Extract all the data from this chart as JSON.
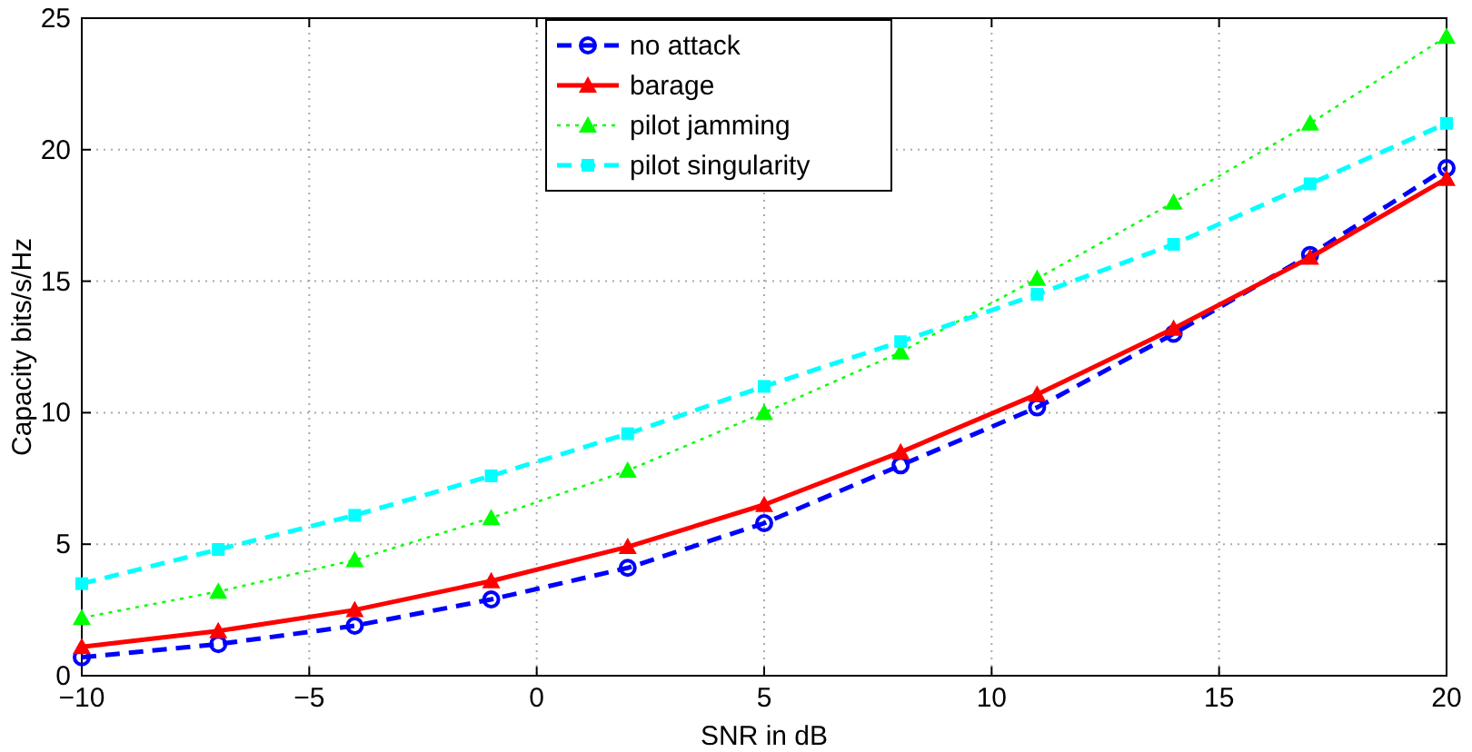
{
  "chart_data": {
    "type": "line",
    "xlabel": "SNR in dB",
    "ylabel": "Capacity bits/s/Hz",
    "x": [
      -10,
      -7,
      -4,
      -1,
      2,
      5,
      8,
      11,
      14,
      17,
      20
    ],
    "series": [
      {
        "name": "no attack",
        "color": "#0000ff",
        "marker": "circle",
        "line_style": "dashed",
        "values": [
          0.7,
          1.2,
          1.9,
          2.9,
          4.1,
          5.8,
          8.0,
          10.2,
          13.0,
          16.0,
          19.3
        ]
      },
      {
        "name": "barage",
        "color": "#ff0000",
        "marker": "triangle",
        "line_style": "solid",
        "values": [
          1.1,
          1.7,
          2.5,
          3.6,
          4.9,
          6.5,
          8.5,
          10.7,
          13.2,
          15.9,
          18.9
        ]
      },
      {
        "name": "pilot jamming",
        "color": "#00ff00",
        "marker": "triangle",
        "line_style": "dotted",
        "values": [
          2.2,
          3.2,
          4.4,
          6.0,
          7.8,
          10.0,
          12.3,
          15.1,
          18.0,
          21.0,
          24.3
        ]
      },
      {
        "name": "pilot singularity",
        "color": "#00ffff",
        "marker": "square",
        "line_style": "dashed",
        "values": [
          3.5,
          4.8,
          6.1,
          7.6,
          9.2,
          11.0,
          12.7,
          14.5,
          16.4,
          18.7,
          21.0
        ]
      }
    ],
    "xlim": [
      -10,
      20
    ],
    "xticks": [
      {
        "value": -10,
        "label": "−10"
      },
      {
        "value": -5,
        "label": "−5"
      },
      0,
      5,
      10,
      15,
      20
    ],
    "ylim": [
      0,
      25
    ],
    "yticks": [
      0,
      5,
      10,
      15,
      20,
      25
    ],
    "grid": true,
    "legend": "top"
  }
}
